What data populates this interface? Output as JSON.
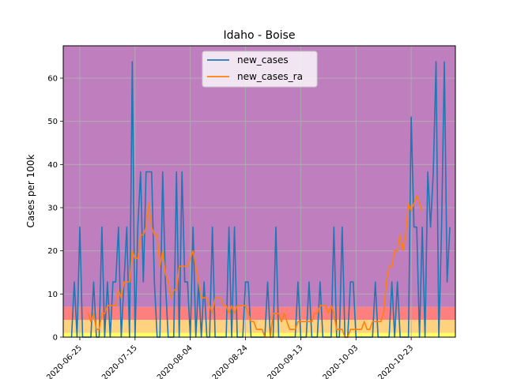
{
  "chart_data": {
    "type": "line",
    "title": "Idaho - Boise",
    "xlabel": "",
    "ylabel": "Cases per 100k",
    "x_start": "2020-06-22",
    "x_end": "2020-11-05",
    "xlim": [
      "2020-06-19",
      "2020-11-08"
    ],
    "ylim": [
      0,
      67.5
    ],
    "xticks": [
      "2020-06-25",
      "2020-07-15",
      "2020-08-04",
      "2020-08-24",
      "2020-09-13",
      "2020-10-03",
      "2020-10-23"
    ],
    "yticks": [
      0,
      10,
      20,
      30,
      40,
      50,
      60
    ],
    "grid": true,
    "legend_placement": "top-center",
    "risk_bands": [
      {
        "from": 0,
        "to": 1,
        "color": "#ffff66"
      },
      {
        "from": 1,
        "to": 4,
        "color": "#ffd27f"
      },
      {
        "from": 4,
        "to": 7,
        "color": "#ff7f7f"
      },
      {
        "from": 7,
        "to": 67.5,
        "color": "#bf7fbf"
      }
    ],
    "series": [
      {
        "name": "new_cases",
        "color": "#1f77b4",
        "values": [
          0,
          12.8,
          0,
          25.5,
          0,
          0,
          0,
          0,
          12.8,
          0,
          0,
          25.5,
          0,
          12.8,
          0,
          12.8,
          12.8,
          25.5,
          0,
          12.8,
          25.5,
          0,
          63.8,
          0,
          25.5,
          38.3,
          12.8,
          38.3,
          38.3,
          38.3,
          12.8,
          0,
          0,
          38.3,
          12.8,
          0,
          0,
          0,
          38.3,
          0,
          38.3,
          12.8,
          12.8,
          0,
          25.5,
          0,
          12.8,
          0,
          12.8,
          0,
          0,
          25.5,
          0,
          0,
          0,
          0,
          0,
          25.5,
          0,
          25.5,
          0,
          0,
          0,
          12.8,
          12.8,
          0,
          0,
          0,
          0,
          0,
          0,
          12.8,
          0,
          0,
          25.5,
          0,
          0,
          0,
          0,
          0,
          0,
          0,
          12.8,
          0,
          0,
          0,
          12.8,
          0,
          0,
          0,
          12.8,
          0,
          0,
          0,
          0,
          25.5,
          0,
          0,
          25.5,
          0,
          0,
          12.8,
          12.8,
          0,
          0,
          0,
          0,
          0,
          0,
          0,
          12.8,
          0,
          0,
          0,
          0,
          0,
          12.8,
          0,
          12.8,
          0,
          0,
          0,
          0,
          51,
          25.5,
          25.5,
          0,
          25.5,
          0,
          38.3,
          25.5,
          38.3,
          63.8,
          0,
          25.5,
          63.8,
          12.8,
          25.5
        ],
        "values_note": "daily values from 2020-06-22 to 2020-11-05"
      },
      {
        "name": "new_cases_ra",
        "color": "#ff7f0e",
        "start": "2020-06-28",
        "values": [
          5.5,
          3.6,
          5.5,
          1.8,
          1.8,
          5.5,
          5.5,
          7.3,
          7.3,
          7.3,
          7.3,
          10.9,
          9.1,
          12.8,
          12.8,
          12.8,
          20,
          18.2,
          18.2,
          23.7,
          23.7,
          25.5,
          31,
          25.5,
          23.7,
          23.7,
          16.4,
          20,
          14.6,
          12.8,
          9.1,
          10.9,
          10.9,
          16.4,
          16.4,
          16.4,
          16.4,
          18.2,
          20,
          16.4,
          12.8,
          9.1,
          9.1,
          9.1,
          7.3,
          5.5,
          9.1,
          9.1,
          9.1,
          7.3,
          7.3,
          5.5,
          7.3,
          5.5,
          7.3,
          7.3,
          7.3,
          7.3,
          5.5,
          3.6,
          3.6,
          1.8,
          1.8,
          1.8,
          0,
          0,
          0,
          5.5,
          5.5,
          5.5,
          3.6,
          5.5,
          3.6,
          1.8,
          1.8,
          1.8,
          3.6,
          3.6,
          3.6,
          3.6,
          3.6,
          3.6,
          5.5,
          5.5,
          7.3,
          7.3,
          7.3,
          5.5,
          7.3,
          5.5,
          1.8,
          1.8,
          1.8,
          0,
          0,
          1.8,
          1.8,
          1.8,
          1.8,
          1.8,
          3.6,
          1.8,
          1.8,
          3.6,
          3.6,
          3.6,
          3.6,
          5.5,
          12.8,
          16.4,
          16.4,
          20,
          20,
          23.7,
          20,
          23.7,
          31,
          29.2,
          31,
          32.8,
          31,
          29.2
        ]
      }
    ]
  }
}
